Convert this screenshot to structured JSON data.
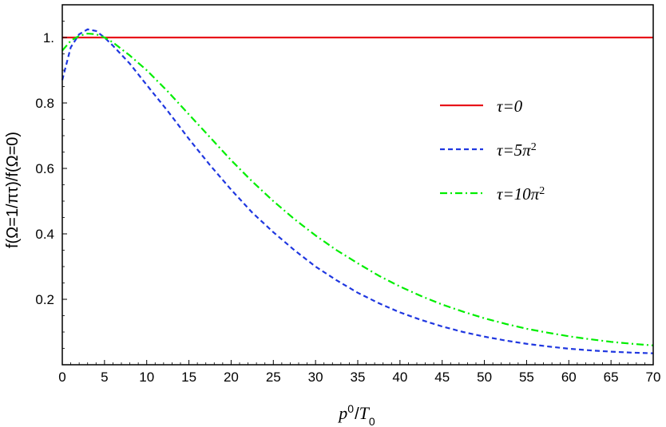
{
  "chart_data": {
    "type": "line",
    "xlabel": {
      "base": "p",
      "sup": "0",
      "sep": "/",
      "base2": "T",
      "sub": "0"
    },
    "ylabel": "f(Ω=1/πτ)/f(Ω=0)",
    "xlim": [
      0,
      70
    ],
    "ylim": [
      0,
      1.1
    ],
    "xticks": [
      0,
      5,
      10,
      15,
      20,
      25,
      30,
      35,
      40,
      45,
      50,
      55,
      60,
      65,
      70
    ],
    "yticks": [
      {
        "value": 0.2,
        "label": "0.2"
      },
      {
        "value": 0.4,
        "label": "0.4"
      },
      {
        "value": 0.6,
        "label": "0.6"
      },
      {
        "value": 0.8,
        "label": "0.8"
      },
      {
        "value": 1.0,
        "label": "1."
      }
    ],
    "grid": false,
    "legend_position": "right-middle",
    "series": [
      {
        "name": "τ=0",
        "legend_base": "τ=0",
        "legend_sup": "",
        "color": "#e8141a",
        "dash": "solid",
        "x": [
          0,
          70
        ],
        "y": [
          1.0,
          1.0
        ]
      },
      {
        "name": "τ=5π²",
        "legend_base": "τ=5π",
        "legend_sup": "2",
        "color": "#1f37e0",
        "dash": "dashed",
        "x": [
          0,
          1,
          2,
          3,
          4,
          5,
          6,
          8,
          10,
          12.5,
          15,
          17.5,
          20,
          22.5,
          25,
          27.5,
          30,
          32.5,
          35,
          37.5,
          40,
          42.5,
          45,
          47.5,
          50,
          52.5,
          55,
          57.5,
          60,
          62.5,
          65,
          67.5,
          70
        ],
        "y": [
          0.87,
          0.97,
          1.01,
          1.025,
          1.02,
          1.0,
          0.975,
          0.92,
          0.855,
          0.775,
          0.69,
          0.61,
          0.535,
          0.465,
          0.405,
          0.35,
          0.3,
          0.258,
          0.22,
          0.188,
          0.16,
          0.137,
          0.117,
          0.1,
          0.086,
          0.074,
          0.064,
          0.056,
          0.049,
          0.044,
          0.04,
          0.037,
          0.035
        ]
      },
      {
        "name": "τ=10π²",
        "legend_base": "τ=10π",
        "legend_sup": "2",
        "color": "#00ee00",
        "dash": "dashdot",
        "x": [
          0,
          1,
          2,
          3,
          4,
          5,
          6,
          8,
          10,
          12.5,
          15,
          17.5,
          20,
          22.5,
          25,
          27.5,
          30,
          32.5,
          35,
          37.5,
          40,
          42.5,
          45,
          47.5,
          50,
          52.5,
          55,
          57.5,
          60,
          62.5,
          65,
          67.5,
          70
        ],
        "y": [
          0.96,
          0.99,
          1.005,
          1.012,
          1.01,
          1.0,
          0.985,
          0.945,
          0.9,
          0.835,
          0.765,
          0.695,
          0.625,
          0.56,
          0.5,
          0.445,
          0.395,
          0.35,
          0.31,
          0.272,
          0.239,
          0.21,
          0.184,
          0.162,
          0.142,
          0.125,
          0.11,
          0.098,
          0.087,
          0.078,
          0.07,
          0.064,
          0.059
        ]
      }
    ]
  }
}
